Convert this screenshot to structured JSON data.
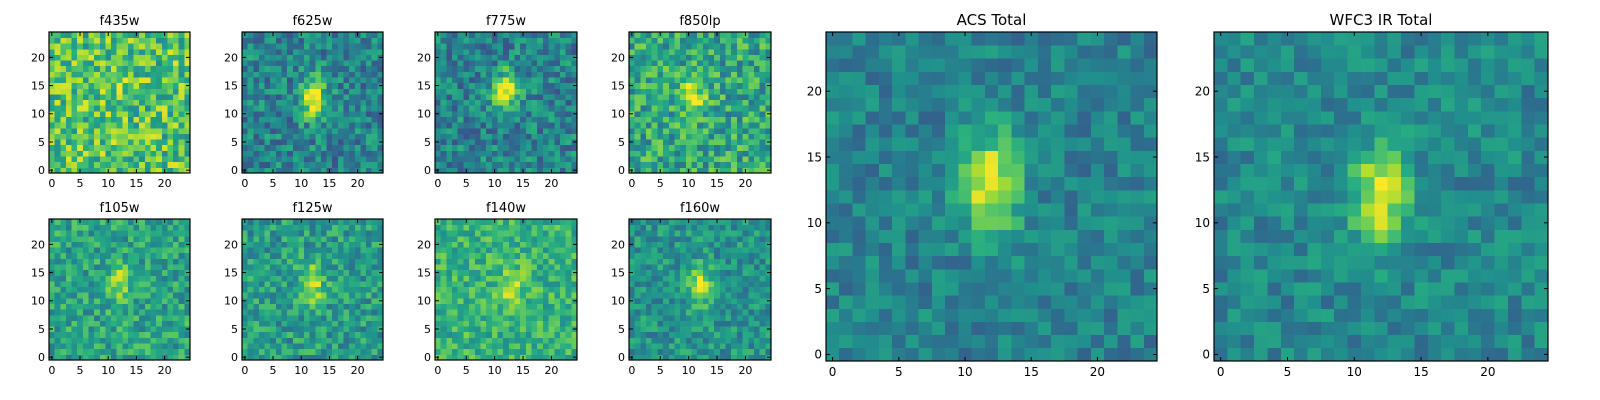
{
  "chart_data": {
    "type": "heatmap",
    "colormap": "viridis",
    "grid_size": 25,
    "origin": "lower",
    "panels": [
      {
        "id": "f435w",
        "title": "f435w",
        "xticks": [
          "0",
          "5",
          "10",
          "15",
          "20"
        ],
        "yticks": [
          "0",
          "5",
          "10",
          "15",
          "20"
        ],
        "source_peak": [
          12,
          13
        ],
        "peak_strength": 0.08,
        "noise": 0.24,
        "background": 0.72
      },
      {
        "id": "f625w",
        "title": "f625w",
        "xticks": [
          "0",
          "5",
          "10",
          "15",
          "20"
        ],
        "yticks": [
          "0",
          "5",
          "10",
          "15",
          "20"
        ],
        "source_peak": [
          12,
          13
        ],
        "peak_strength": 0.55,
        "noise": 0.2,
        "background": 0.45
      },
      {
        "id": "f775w",
        "title": "f775w",
        "xticks": [
          "0",
          "5",
          "10",
          "15",
          "20"
        ],
        "yticks": [
          "0",
          "5",
          "10",
          "15",
          "20"
        ],
        "source_peak": [
          12,
          14
        ],
        "peak_strength": 0.5,
        "noise": 0.2,
        "background": 0.45
      },
      {
        "id": "f850lp",
        "title": "f850lp",
        "xticks": [
          "0",
          "5",
          "10",
          "15",
          "20"
        ],
        "yticks": [
          "0",
          "5",
          "10",
          "15",
          "20"
        ],
        "source_peak": [
          11,
          13
        ],
        "peak_strength": 0.32,
        "noise": 0.22,
        "background": 0.6
      },
      {
        "id": "f105w",
        "title": "f105w",
        "xticks": [
          "0",
          "5",
          "10",
          "15",
          "20"
        ],
        "yticks": [
          "0",
          "5",
          "10",
          "15",
          "20"
        ],
        "source_peak": [
          12,
          13
        ],
        "peak_strength": 0.3,
        "noise": 0.18,
        "background": 0.58
      },
      {
        "id": "f125w",
        "title": "f125w",
        "xticks": [
          "0",
          "5",
          "10",
          "15",
          "20"
        ],
        "yticks": [
          "0",
          "5",
          "10",
          "15",
          "20"
        ],
        "source_peak": [
          12,
          13
        ],
        "peak_strength": 0.35,
        "noise": 0.18,
        "background": 0.55
      },
      {
        "id": "f140w",
        "title": "f140w",
        "xticks": [
          "0",
          "5",
          "10",
          "15",
          "20"
        ],
        "yticks": [
          "0",
          "5",
          "10",
          "15",
          "20"
        ],
        "source_peak": [
          13,
          12
        ],
        "peak_strength": 0.25,
        "noise": 0.16,
        "background": 0.65
      },
      {
        "id": "f160w",
        "title": "f160w",
        "xticks": [
          "0",
          "5",
          "10",
          "15",
          "20"
        ],
        "yticks": [
          "0",
          "5",
          "10",
          "15",
          "20"
        ],
        "source_peak": [
          12,
          13
        ],
        "peak_strength": 0.38,
        "noise": 0.16,
        "background": 0.52
      },
      {
        "id": "acs_total",
        "title": "ACS Total",
        "xticks": [
          "0",
          "5",
          "10",
          "15",
          "20"
        ],
        "yticks": [
          "0",
          "5",
          "10",
          "15",
          "20"
        ],
        "source_peak": [
          12,
          13
        ],
        "peak_strength": 0.55,
        "noise": 0.13,
        "background": 0.45
      },
      {
        "id": "wfc3_ir_total",
        "title": "WFC3 IR Total",
        "xticks": [
          "0",
          "5",
          "10",
          "15",
          "20"
        ],
        "yticks": [
          "0",
          "5",
          "10",
          "15",
          "20"
        ],
        "source_peak": [
          12,
          12
        ],
        "peak_strength": 0.5,
        "noise": 0.13,
        "background": 0.47
      }
    ]
  }
}
